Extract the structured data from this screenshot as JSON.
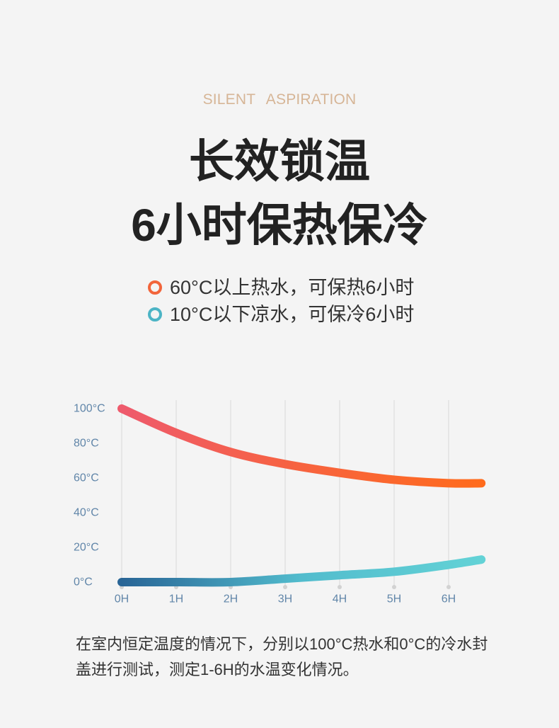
{
  "tagline": "SILENT ASPIRATION",
  "headline": {
    "line1": "长效锁温",
    "line2": "6小时保热保冷"
  },
  "chart_data": {
    "type": "line",
    "legend_position": "top",
    "grid": "vertical",
    "x": [
      0,
      1,
      2,
      3,
      4,
      5,
      6,
      6.6
    ],
    "xlim": [
      0,
      6.6
    ],
    "ylim": [
      0,
      100
    ],
    "x_ticks": [
      {
        "value": 0,
        "label": "0H"
      },
      {
        "value": 1,
        "label": "1H"
      },
      {
        "value": 2,
        "label": "2H"
      },
      {
        "value": 3,
        "label": "3H"
      },
      {
        "value": 4,
        "label": "4H"
      },
      {
        "value": 5,
        "label": "5H"
      },
      {
        "value": 6,
        "label": "6H"
      }
    ],
    "y_ticks": [
      {
        "value": 100,
        "label": "100°C"
      },
      {
        "value": 80,
        "label": "80°C"
      },
      {
        "value": 60,
        "label": "60°C"
      },
      {
        "value": 40,
        "label": "40°C"
      },
      {
        "value": 20,
        "label": "20°C"
      },
      {
        "value": 0,
        "label": "0°C"
      }
    ],
    "series": [
      {
        "name": "60°C以上热水，可保热6小时",
        "values": [
          100,
          86,
          75,
          68,
          63,
          59,
          57,
          57
        ],
        "marker_color": "#f2653b",
        "gradient": [
          "#ee5a6c",
          "#f7633f",
          "#ff6b1c"
        ]
      },
      {
        "name": "10°C以下凉水，可保冷6小时",
        "values": [
          0,
          0,
          0,
          2,
          4,
          6,
          10,
          13
        ],
        "marker_color": "#4cb4c5",
        "gradient": [
          "#296596",
          "#52bccd",
          "#63d2d6"
        ]
      }
    ]
  },
  "caption": {
    "lines": [
      "在室内恒定温度的情况下，分别以100°C热水和0°C的冷水封",
      "盖进行测试，测定1-6H的水温变化情况。"
    ]
  },
  "colors": {
    "background": "#f4f4f4",
    "tagline": "#d6b596",
    "headline": "#222222",
    "body_text": "#333333",
    "axis_labels": "#6186a9",
    "grid": "#d8d8d8"
  }
}
